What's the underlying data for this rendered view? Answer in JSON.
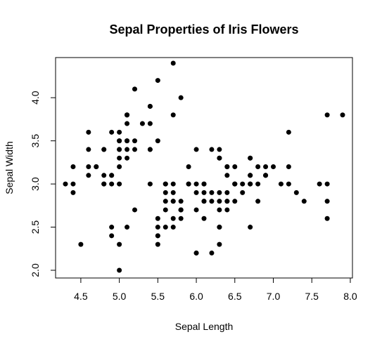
{
  "chart_data": {
    "type": "scatter",
    "title": "Sepal Properties of Iris Flowers",
    "xlabel": "Sepal Length",
    "ylabel": "Sepal Width",
    "xlim": [
      4.3,
      7.9
    ],
    "ylim": [
      2.0,
      4.4
    ],
    "x_ticks": [
      "4.5",
      "5.0",
      "5.5",
      "6.0",
      "6.5",
      "7.0",
      "7.5",
      "8.0"
    ],
    "y_ticks": [
      "2.0",
      "2.5",
      "3.0",
      "3.5",
      "4.0"
    ],
    "grid": false,
    "legend": "none",
    "point_color": "#000000",
    "series": [
      {
        "points": [
          [
            5.1,
            3.5
          ],
          [
            4.9,
            3.0
          ],
          [
            4.7,
            3.2
          ],
          [
            4.6,
            3.1
          ],
          [
            5.0,
            3.6
          ],
          [
            5.4,
            3.9
          ],
          [
            4.6,
            3.4
          ],
          [
            5.0,
            3.4
          ],
          [
            4.4,
            2.9
          ],
          [
            4.9,
            3.1
          ],
          [
            5.4,
            3.7
          ],
          [
            4.8,
            3.4
          ],
          [
            4.8,
            3.0
          ],
          [
            4.3,
            3.0
          ],
          [
            5.8,
            4.0
          ],
          [
            5.7,
            4.4
          ],
          [
            5.4,
            3.9
          ],
          [
            5.1,
            3.5
          ],
          [
            5.7,
            3.8
          ],
          [
            5.1,
            3.8
          ],
          [
            5.4,
            3.4
          ],
          [
            5.1,
            3.7
          ],
          [
            4.6,
            3.6
          ],
          [
            5.1,
            3.3
          ],
          [
            4.8,
            3.4
          ],
          [
            5.0,
            3.0
          ],
          [
            5.0,
            3.4
          ],
          [
            5.2,
            3.5
          ],
          [
            5.2,
            3.4
          ],
          [
            4.7,
            3.2
          ],
          [
            4.8,
            3.1
          ],
          [
            5.4,
            3.4
          ],
          [
            5.2,
            4.1
          ],
          [
            5.5,
            4.2
          ],
          [
            4.9,
            3.1
          ],
          [
            5.0,
            3.2
          ],
          [
            5.5,
            3.5
          ],
          [
            4.9,
            3.6
          ],
          [
            4.4,
            3.0
          ],
          [
            5.1,
            3.4
          ],
          [
            5.0,
            3.5
          ],
          [
            4.5,
            2.3
          ],
          [
            4.4,
            3.2
          ],
          [
            5.0,
            3.5
          ],
          [
            5.1,
            3.8
          ],
          [
            4.8,
            3.0
          ],
          [
            5.1,
            3.8
          ],
          [
            4.6,
            3.2
          ],
          [
            5.3,
            3.7
          ],
          [
            5.0,
            3.3
          ],
          [
            7.0,
            3.2
          ],
          [
            6.4,
            3.2
          ],
          [
            6.9,
            3.1
          ],
          [
            5.5,
            2.3
          ],
          [
            6.5,
            2.8
          ],
          [
            5.7,
            2.8
          ],
          [
            6.3,
            3.3
          ],
          [
            4.9,
            2.4
          ],
          [
            6.6,
            2.9
          ],
          [
            5.2,
            2.7
          ],
          [
            5.0,
            2.0
          ],
          [
            5.9,
            3.0
          ],
          [
            6.0,
            2.2
          ],
          [
            6.1,
            2.9
          ],
          [
            5.6,
            2.9
          ],
          [
            6.7,
            3.1
          ],
          [
            5.6,
            3.0
          ],
          [
            5.8,
            2.7
          ],
          [
            6.2,
            2.2
          ],
          [
            5.6,
            2.5
          ],
          [
            5.9,
            3.2
          ],
          [
            6.1,
            2.8
          ],
          [
            6.3,
            2.5
          ],
          [
            6.1,
            2.8
          ],
          [
            6.4,
            2.9
          ],
          [
            6.6,
            3.0
          ],
          [
            6.8,
            2.8
          ],
          [
            6.7,
            3.0
          ],
          [
            6.0,
            2.9
          ],
          [
            5.7,
            2.6
          ],
          [
            5.5,
            2.4
          ],
          [
            5.5,
            2.4
          ],
          [
            5.8,
            2.7
          ],
          [
            6.0,
            2.7
          ],
          [
            5.4,
            3.0
          ],
          [
            6.0,
            3.4
          ],
          [
            6.7,
            3.1
          ],
          [
            6.3,
            2.3
          ],
          [
            5.6,
            3.0
          ],
          [
            5.5,
            2.5
          ],
          [
            5.5,
            2.6
          ],
          [
            6.1,
            3.0
          ],
          [
            5.8,
            2.6
          ],
          [
            5.0,
            2.3
          ],
          [
            5.6,
            2.7
          ],
          [
            5.7,
            3.0
          ],
          [
            5.7,
            2.9
          ],
          [
            6.2,
            2.9
          ],
          [
            5.1,
            2.5
          ],
          [
            5.7,
            2.8
          ],
          [
            6.3,
            3.3
          ],
          [
            5.8,
            2.7
          ],
          [
            7.1,
            3.0
          ],
          [
            6.3,
            2.9
          ],
          [
            6.5,
            3.0
          ],
          [
            7.6,
            3.0
          ],
          [
            4.9,
            2.5
          ],
          [
            7.3,
            2.9
          ],
          [
            6.7,
            2.5
          ],
          [
            7.2,
            3.6
          ],
          [
            6.5,
            3.2
          ],
          [
            6.4,
            2.7
          ],
          [
            6.8,
            3.0
          ],
          [
            5.7,
            2.5
          ],
          [
            5.8,
            2.8
          ],
          [
            6.4,
            3.2
          ],
          [
            6.5,
            3.0
          ],
          [
            7.7,
            3.8
          ],
          [
            7.7,
            2.6
          ],
          [
            6.0,
            2.2
          ],
          [
            6.9,
            3.2
          ],
          [
            5.6,
            2.8
          ],
          [
            7.7,
            2.8
          ],
          [
            6.3,
            2.7
          ],
          [
            6.7,
            3.3
          ],
          [
            7.2,
            3.2
          ],
          [
            6.2,
            2.8
          ],
          [
            6.1,
            3.0
          ],
          [
            6.4,
            2.8
          ],
          [
            7.2,
            3.0
          ],
          [
            7.4,
            2.8
          ],
          [
            7.9,
            3.8
          ],
          [
            6.4,
            2.8
          ],
          [
            6.3,
            2.8
          ],
          [
            6.1,
            2.6
          ],
          [
            7.7,
            3.0
          ],
          [
            6.3,
            3.4
          ],
          [
            6.4,
            3.1
          ],
          [
            6.0,
            3.0
          ],
          [
            6.9,
            3.1
          ],
          [
            6.7,
            3.1
          ],
          [
            6.9,
            3.1
          ],
          [
            5.8,
            2.7
          ],
          [
            6.8,
            3.2
          ],
          [
            6.7,
            3.3
          ],
          [
            6.7,
            3.0
          ],
          [
            6.3,
            2.5
          ],
          [
            6.5,
            3.0
          ],
          [
            6.2,
            3.4
          ],
          [
            5.9,
            3.0
          ]
        ]
      }
    ]
  }
}
